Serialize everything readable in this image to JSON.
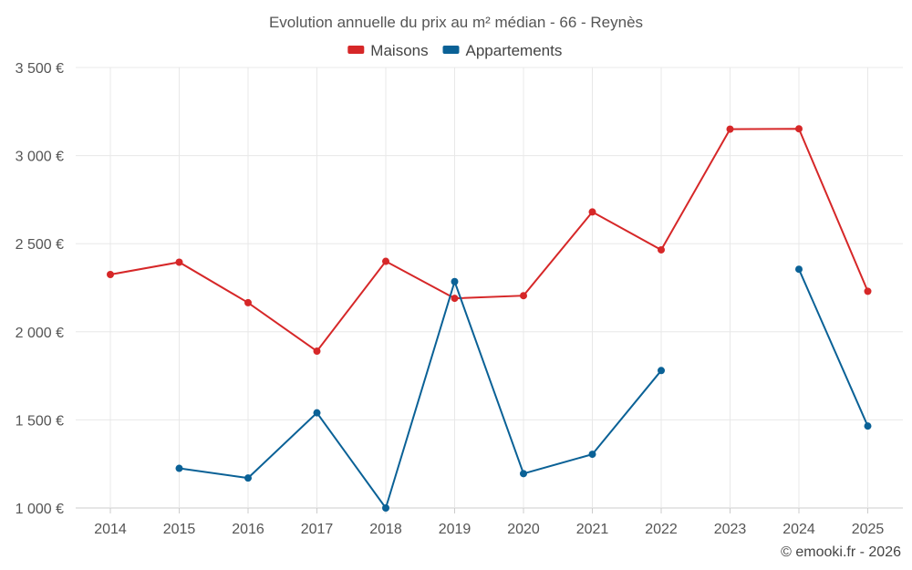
{
  "chart_data": {
    "type": "line",
    "title": "Evolution annuelle du prix au m² médian - 66 - Reynès",
    "categories": [
      "2014",
      "2015",
      "2016",
      "2017",
      "2018",
      "2019",
      "2020",
      "2021",
      "2022",
      "2023",
      "2024",
      "2025"
    ],
    "series": [
      {
        "name": "Maisons",
        "color": "#d62728",
        "values": [
          2325,
          2395,
          2165,
          1890,
          2400,
          2190,
          2205,
          2680,
          2465,
          3150,
          3152,
          2230
        ]
      },
      {
        "name": "Appartements",
        "color": "#0a6196",
        "values": [
          null,
          1225,
          1170,
          1540,
          1000,
          2285,
          1195,
          1305,
          1780,
          null,
          2355,
          1465
        ]
      }
    ],
    "ylim": [
      1000,
      3500
    ],
    "yticks": [
      1000,
      1500,
      2000,
      2500,
      3000,
      3500
    ],
    "ytick_labels": [
      "1 000 €",
      "1 500 €",
      "2 000 €",
      "2 500 €",
      "3 000 €",
      "3 500 €"
    ],
    "xlabel": "",
    "ylabel": "",
    "grid": true,
    "legend_position": "top-center"
  },
  "credit": "© emooki.fr - 2026"
}
